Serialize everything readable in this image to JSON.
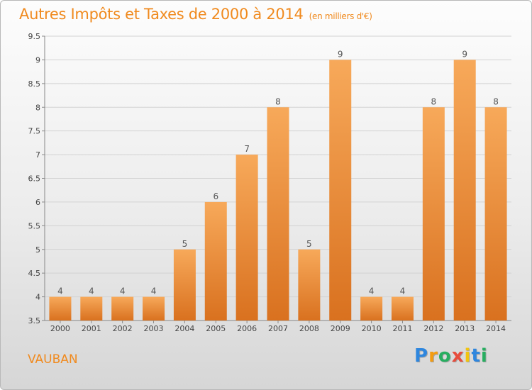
{
  "page": {
    "title": "Autres Impôts et Taxes de 2000 à 2014",
    "unit": "(en milliers d'€)",
    "commune": "VAUBAN",
    "logo_letters": [
      {
        "ch": "P",
        "color": "#2e86de"
      },
      {
        "ch": "r",
        "color": "#f39c12"
      },
      {
        "ch": "o",
        "color": "#27ae60"
      },
      {
        "ch": "x",
        "color": "#e74c3c"
      },
      {
        "ch": "i",
        "color": "#f1c40f"
      },
      {
        "ch": "t",
        "color": "#2e86de"
      },
      {
        "ch": "i",
        "color": "#27ae60"
      }
    ]
  },
  "chart_data": {
    "type": "bar",
    "categories": [
      "2000",
      "2001",
      "2002",
      "2003",
      "2004",
      "2005",
      "2006",
      "2007",
      "2008",
      "2009",
      "2010",
      "2011",
      "2012",
      "2013",
      "2014"
    ],
    "values": [
      4,
      4,
      4,
      4,
      5,
      6,
      7,
      8,
      5,
      9,
      4,
      4,
      8,
      9,
      8
    ],
    "data_labels": [
      "4",
      "4",
      "4",
      "4",
      "5",
      "6",
      "7",
      "8",
      "5",
      "9",
      "4",
      "4",
      "8",
      "9",
      "8"
    ],
    "ylim": [
      3.5,
      9.5
    ],
    "yticks": [
      "3.5",
      "4",
      "4.5",
      "5",
      "5.5",
      "6",
      "6.5",
      "7",
      "7.5",
      "8",
      "8.5",
      "9",
      "9.5"
    ],
    "grid": true,
    "bar_color_top": "#f7a95a",
    "bar_color_bottom": "#d9711f",
    "label_color": "#555555"
  }
}
